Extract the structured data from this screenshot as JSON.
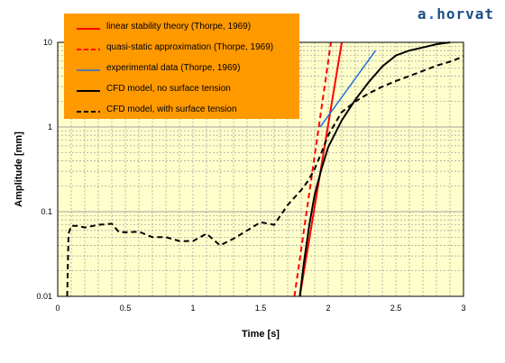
{
  "brand": {
    "text": "a.horvat",
    "dot_color": "#1f6fd0",
    "text_color": "#1a4f86"
  },
  "chart_data": {
    "type": "line",
    "title": "",
    "xlabel": "Time  [s]",
    "ylabel": "Amplitude [mm]",
    "xlim": [
      0,
      3
    ],
    "ylim": [
      0.01,
      10
    ],
    "yscale": "log",
    "grid": true,
    "plot_background": "#ffffcc",
    "legend_placement": "top-left",
    "legend_background": "#ff9900",
    "xticks": [
      "0",
      "0.5",
      "1",
      "1.5",
      "2",
      "2.5",
      "3"
    ],
    "yticks": [
      "0.01",
      "0.1",
      "1",
      "10"
    ],
    "series": [
      {
        "name": "linear stability theory (Thorpe, 1969)",
        "color": "#ff0000",
        "dash": "solid",
        "width": 2,
        "points": [
          [
            1.79,
            0.01
          ],
          [
            2.1,
            10
          ]
        ]
      },
      {
        "name": "quasi-static approximation (Thorpe, 1969)",
        "color": "#ff0000",
        "dash": "dashed",
        "width": 2,
        "points": [
          [
            1.75,
            0.01
          ],
          [
            2.02,
            10
          ]
        ]
      },
      {
        "name": "experimental data  (Thorpe, 1969)",
        "color": "#1f6fe0",
        "dash": "solid",
        "width": 1.5,
        "points": [
          [
            1.94,
            1.0
          ],
          [
            2.35,
            8.0
          ]
        ]
      },
      {
        "name": "CFD model, no surface tension",
        "color": "#000000",
        "dash": "solid",
        "width": 2,
        "points": [
          [
            1.79,
            0.01
          ],
          [
            1.82,
            0.025
          ],
          [
            1.86,
            0.07
          ],
          [
            1.9,
            0.16
          ],
          [
            1.95,
            0.32
          ],
          [
            2.0,
            0.58
          ],
          [
            2.1,
            1.2
          ],
          [
            2.2,
            2.1
          ],
          [
            2.3,
            3.4
          ],
          [
            2.4,
            5.2
          ],
          [
            2.5,
            7.0
          ],
          [
            2.6,
            8.0
          ],
          [
            2.7,
            8.7
          ],
          [
            2.8,
            9.5
          ],
          [
            2.9,
            10.0
          ]
        ]
      },
      {
        "name": "CFD model, with surface tension",
        "color": "#000000",
        "dash": "dashed",
        "width": 2,
        "points": [
          [
            0.07,
            0.01
          ],
          [
            0.08,
            0.055
          ],
          [
            0.1,
            0.068
          ],
          [
            0.15,
            0.068
          ],
          [
            0.2,
            0.065
          ],
          [
            0.3,
            0.07
          ],
          [
            0.4,
            0.072
          ],
          [
            0.45,
            0.058
          ],
          [
            0.5,
            0.057
          ],
          [
            0.6,
            0.058
          ],
          [
            0.7,
            0.05
          ],
          [
            0.8,
            0.05
          ],
          [
            0.9,
            0.045
          ],
          [
            1.0,
            0.045
          ],
          [
            1.1,
            0.055
          ],
          [
            1.2,
            0.04
          ],
          [
            1.3,
            0.048
          ],
          [
            1.4,
            0.06
          ],
          [
            1.5,
            0.075
          ],
          [
            1.6,
            0.07
          ],
          [
            1.7,
            0.12
          ],
          [
            1.8,
            0.18
          ],
          [
            1.85,
            0.23
          ],
          [
            1.9,
            0.32
          ],
          [
            1.95,
            0.5
          ],
          [
            2.0,
            0.8
          ],
          [
            2.05,
            1.1
          ],
          [
            2.1,
            1.5
          ],
          [
            2.2,
            2.0
          ],
          [
            2.3,
            2.5
          ],
          [
            2.4,
            3.0
          ],
          [
            2.5,
            3.5
          ],
          [
            2.6,
            4.0
          ],
          [
            2.7,
            4.6
          ],
          [
            2.8,
            5.3
          ],
          [
            2.9,
            5.9
          ],
          [
            3.0,
            6.8
          ]
        ]
      }
    ]
  }
}
